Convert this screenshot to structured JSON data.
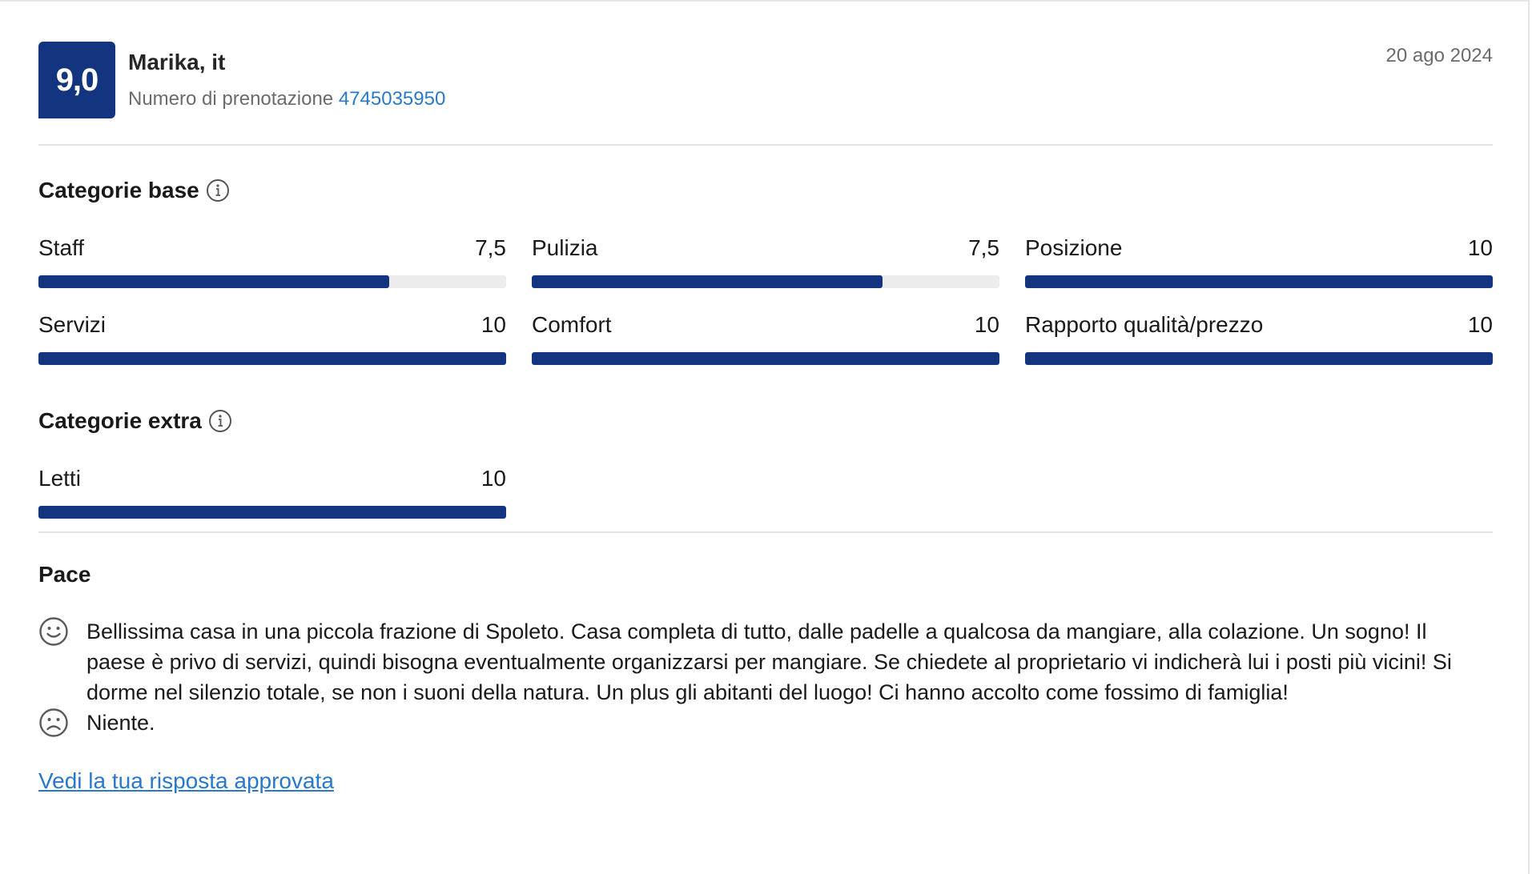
{
  "review": {
    "score": "9,0",
    "reviewer": "Marika, it",
    "booking_label": "Numero di prenotazione",
    "booking_number": "4745035950",
    "date": "20 ago 2024"
  },
  "base_categories": {
    "title": "Categorie base",
    "info_icon": "info-circle-icon",
    "items": [
      {
        "label": "Staff",
        "score": "7,5",
        "fraction": 0.75
      },
      {
        "label": "Pulizia",
        "score": "7,5",
        "fraction": 0.75
      },
      {
        "label": "Posizione",
        "score": "10",
        "fraction": 1.0
      },
      {
        "label": "Servizi",
        "score": "10",
        "fraction": 1.0
      },
      {
        "label": "Comfort",
        "score": "10",
        "fraction": 1.0
      },
      {
        "label": "Rapporto qualità/prezzo",
        "score": "10",
        "fraction": 1.0
      }
    ]
  },
  "extra_categories": {
    "title": "Categorie extra",
    "info_icon": "info-circle-icon",
    "items": [
      {
        "label": "Letti",
        "score": "10",
        "fraction": 1.0
      }
    ]
  },
  "comments": {
    "title": "Pace",
    "positive_icon": "smiley-face-icon",
    "positive": "Bellissima casa in una piccola frazione di Spoleto. Casa completa di tutto, dalle padelle a qualcosa da mangiare, alla colazione. Un sogno! Il paese è privo di servizi, quindi bisogna eventualmente organizzarsi per mangiare. Se chiedete al proprietario vi indicherà lui i posti più vicini! Si dorme nel silenzio totale, se non i suoni della natura. Un plus gli abitanti del luogo! Ci hanno accolto come fossimo di famiglia!",
    "negative_icon": "sad-face-icon",
    "negative": "Niente."
  },
  "footer": {
    "approved_link": "Vedi la tua risposta approvata"
  },
  "colors": {
    "accent": "#13347f",
    "link": "#2a78c9",
    "track": "#ececec"
  }
}
